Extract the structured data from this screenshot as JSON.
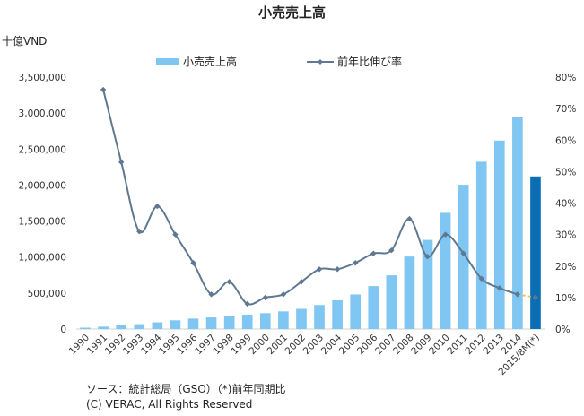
{
  "title": "小売売上高",
  "unit_label": "十億VND",
  "legend": {
    "bar_label": "小売売上高",
    "line_label": "前年比伸び率"
  },
  "source": {
    "line1": "ソース：統計総局（GSO）（*)前年同期比",
    "line2": "(C) VERAC, All Rights Reserved"
  },
  "colors": {
    "bar": "#7fc6f2",
    "bar_highlight": "#0b6db4",
    "line": "#5f7891",
    "line_projection": "#f2c744"
  },
  "chart_data": {
    "type": "bar",
    "title": "小売売上高",
    "categories": [
      "1990",
      "1991",
      "1992",
      "1993",
      "1994",
      "1995",
      "1996",
      "1997",
      "1998",
      "1999",
      "2000",
      "2001",
      "2002",
      "2003",
      "2004",
      "2005",
      "2006",
      "2007",
      "2008",
      "2009",
      "2010",
      "2011",
      "2012",
      "2013",
      "2014",
      "2015/8M(*)"
    ],
    "series": [
      {
        "name": "小売売上高",
        "type": "bar",
        "axis": "left",
        "values": [
          19000,
          33000,
          51000,
          67000,
          93000,
          121000,
          145000,
          161000,
          185000,
          200000,
          220000,
          245000,
          280000,
          333000,
          399000,
          480000,
          596000,
          746000,
          1007000,
          1238000,
          1614000,
          2004000,
          2324000,
          2618000,
          2946000,
          2120000
        ]
      },
      {
        "name": "前年比伸び率",
        "type": "line",
        "axis": "right",
        "values": [
          null,
          76,
          53,
          31,
          39,
          30,
          21,
          11,
          15,
          8,
          10,
          11,
          15,
          19,
          19,
          21,
          24,
          25,
          35,
          23,
          30,
          24,
          16,
          13,
          11,
          10
        ]
      }
    ],
    "ylabel": "十億VND",
    "ylim": [
      0,
      3500000
    ],
    "y_ticks": [
      "0",
      "500,000",
      "1,000,000",
      "1,500,000",
      "2,000,000",
      "2,500,000",
      "3,000,000",
      "3,500,000"
    ],
    "y2lim": [
      0,
      80
    ],
    "y2_ticks": [
      "0%",
      "10%",
      "20%",
      "30%",
      "40%",
      "50%",
      "60%",
      "70%",
      "80%"
    ],
    "highlight_last_bar": true,
    "legend_position": "top-center",
    "grid": false
  }
}
